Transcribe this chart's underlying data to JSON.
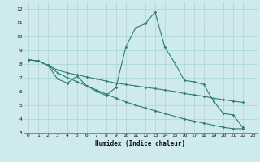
{
  "xlabel": "Humidex (Indice chaleur)",
  "background_color": "#ceeaec",
  "grid_color": "#a8d4d6",
  "line_color": "#2e7d72",
  "xlim": [
    -0.5,
    23.5
  ],
  "ylim": [
    3,
    12.5
  ],
  "xticks": [
    0,
    1,
    2,
    3,
    4,
    5,
    6,
    7,
    8,
    9,
    10,
    11,
    12,
    13,
    14,
    15,
    16,
    17,
    18,
    19,
    20,
    21,
    22,
    23
  ],
  "yticks": [
    3,
    4,
    5,
    6,
    7,
    8,
    9,
    10,
    11,
    12
  ],
  "line1_y": [
    8.3,
    8.2,
    7.9,
    6.9,
    6.6,
    7.1,
    6.4,
    6.0,
    5.7,
    6.3,
    9.2,
    10.6,
    10.9,
    11.75,
    9.2,
    8.1,
    6.8,
    6.7,
    6.5,
    5.3,
    4.4,
    4.3,
    3.4
  ],
  "line2_y": [
    8.3,
    8.2,
    7.9,
    7.55,
    7.35,
    7.2,
    7.05,
    6.9,
    6.75,
    6.6,
    6.5,
    6.4,
    6.3,
    6.2,
    6.1,
    6.0,
    5.85,
    5.75,
    5.65,
    5.5,
    5.4,
    5.3,
    5.2
  ],
  "line3_y": [
    8.3,
    8.2,
    7.9,
    7.35,
    7.0,
    6.7,
    6.4,
    6.1,
    5.8,
    5.5,
    5.25,
    5.0,
    4.8,
    4.6,
    4.4,
    4.2,
    4.0,
    3.85,
    3.7,
    3.55,
    3.4,
    3.3,
    3.3
  ]
}
